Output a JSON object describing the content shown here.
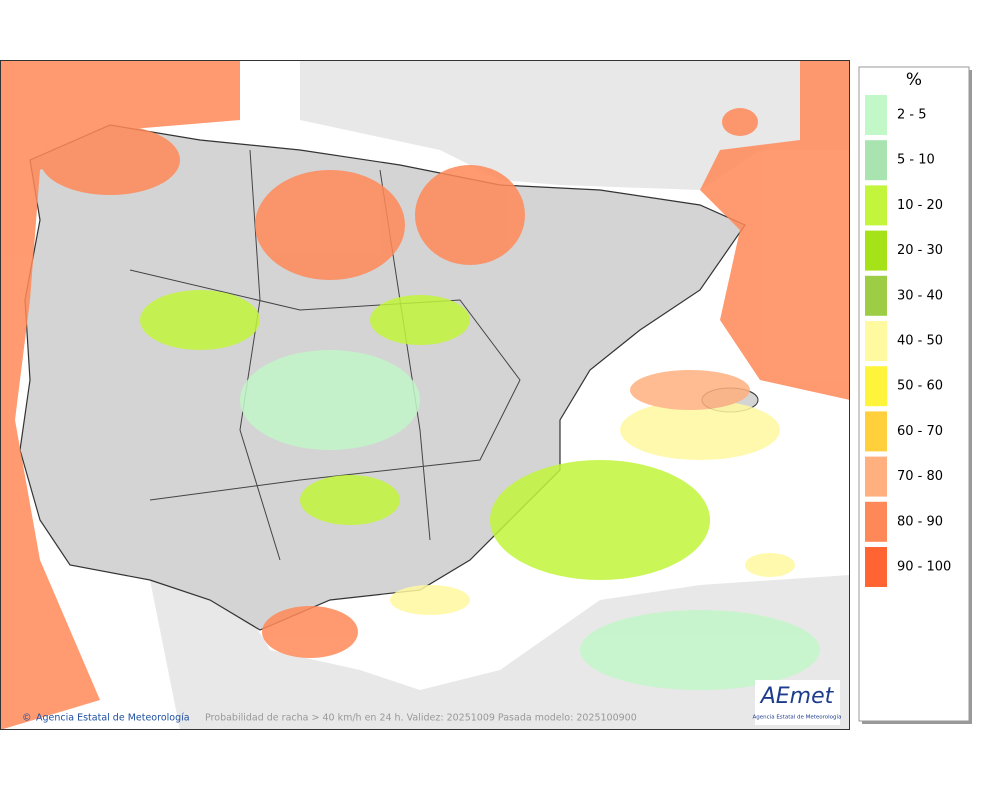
{
  "legend": {
    "title": "%",
    "items": [
      {
        "label": "2 - 5",
        "color": "#c2f7c8"
      },
      {
        "label": "5 - 10",
        "color": "#a9e3b0"
      },
      {
        "label": "10 - 20",
        "color": "#c2f53c"
      },
      {
        "label": "20 - 30",
        "color": "#a6e218"
      },
      {
        "label": "30 - 40",
        "color": "#9ccd45"
      },
      {
        "label": "40 - 50",
        "color": "#fff9a0"
      },
      {
        "label": "50 - 60",
        "color": "#fff43c"
      },
      {
        "label": "60 - 70",
        "color": "#ffd03c"
      },
      {
        "label": "70 - 80",
        "color": "#ffb07e"
      },
      {
        "label": "80 - 90",
        "color": "#ff8858"
      },
      {
        "label": "90 - 100",
        "color": "#ff6432"
      }
    ]
  },
  "footer": {
    "credit": "Agencia Estatal de Meteorología",
    "caption": "Probabilidad de racha > 40 km/h en 24 h. Validez: 20251009 Pasada modelo: 2025100900"
  },
  "logo": {
    "name": "AEmet",
    "subtitle": "Agencia Estatal de Meteorología"
  }
}
